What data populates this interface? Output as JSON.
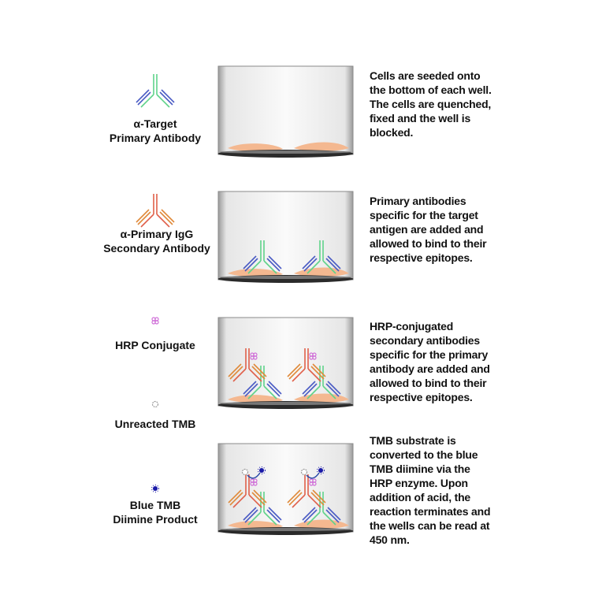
{
  "legend": [
    {
      "name": "primary-antibody",
      "lines": [
        "α-Target",
        "Primary Antibody"
      ]
    },
    {
      "name": "secondary-antibody",
      "lines": [
        "α-Primary IgG",
        "Secondary Antibody"
      ]
    },
    {
      "name": "hrp-conjugate",
      "lines": [
        "HRP Conjugate"
      ]
    },
    {
      "name": "unreacted-tmb",
      "lines": [
        "Unreacted TMB"
      ]
    },
    {
      "name": "blue-tmb",
      "lines": [
        "Blue TMB",
        "Diimine Product"
      ]
    }
  ],
  "steps": [
    {
      "lines": [
        "Cells are seeded onto",
        "the bottom of each well.",
        "The cells are quenched,",
        "fixed and the well is",
        "blocked."
      ]
    },
    {
      "lines": [
        "Primary antibodies",
        "specific for the target",
        "antigen are added and",
        "allowed to bind to their",
        "respective epitopes."
      ]
    },
    {
      "lines": [
        "HRP-conjugated",
        "secondary antibodies",
        "specific for the primary",
        "antibody are added and",
        "allowed to bind to their",
        "respective epitopes."
      ]
    },
    {
      "lines": [
        "TMB substrate is",
        "converted to the blue",
        "TMB diimine via the",
        "HRP enzyme. Upon",
        "addition of acid, the",
        "reaction terminates and",
        "the wells can be read at",
        "450 nm."
      ]
    }
  ],
  "colors": {
    "primary_heavy": "#5fd38a",
    "primary_light": "#4a5bc4",
    "secondary_heavy": "#e0604a",
    "secondary_light": "#e08a3a",
    "hrp": "#d070d8",
    "tmb_blue": "#1a1aa8",
    "cell": "#f4b890"
  }
}
